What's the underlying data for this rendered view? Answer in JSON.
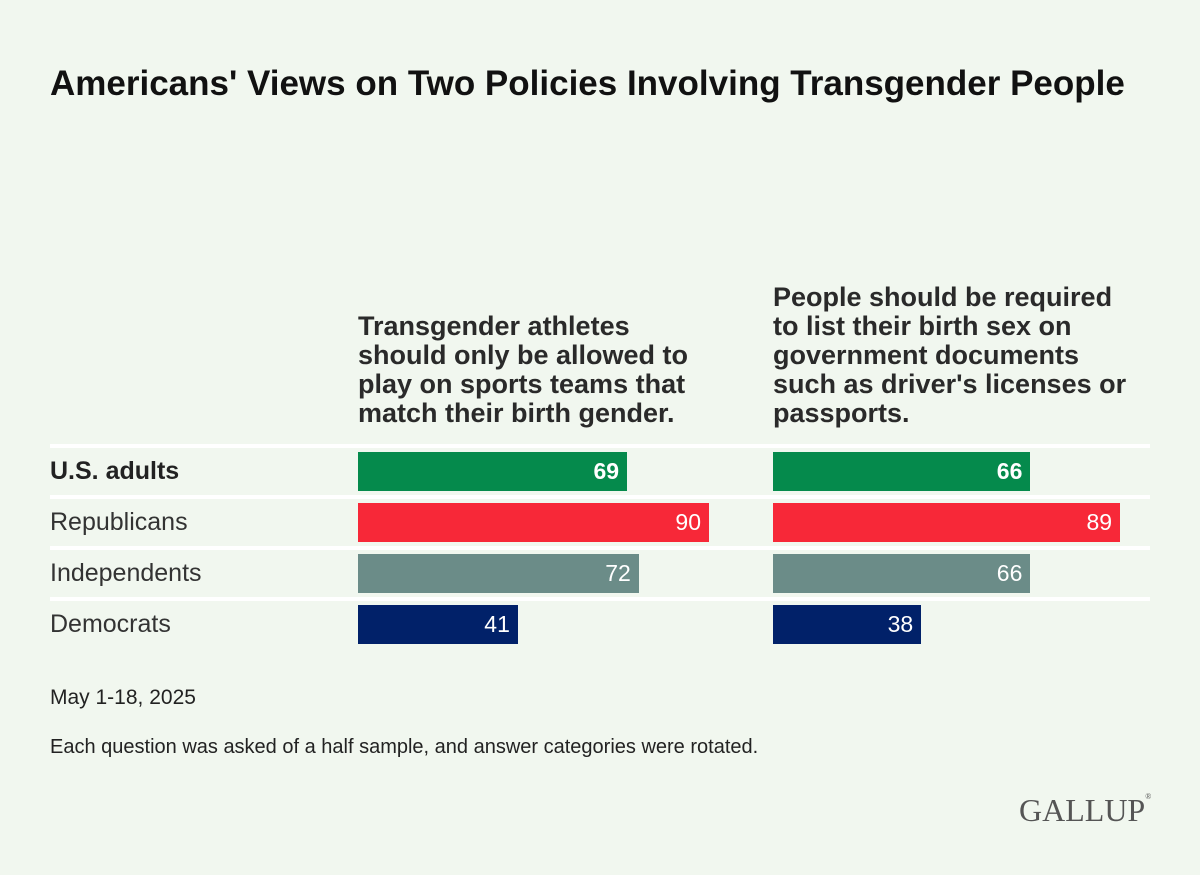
{
  "title": "Americans' Views on Two Policies Involving Transgender People",
  "chart_data": {
    "type": "bar",
    "title": "Americans' Views on Two Policies Involving Transgender People",
    "categories": [
      "U.S. adults",
      "Republicans",
      "Independents",
      "Democrats"
    ],
    "category_colors": [
      "#058a4c",
      "#f72838",
      "#6b8c88",
      "#012169"
    ],
    "series": [
      {
        "name": "Transgender athletes should only be allowed to play on sports teams that match their birth gender.",
        "values": [
          69,
          90,
          72,
          41
        ]
      },
      {
        "name": "People should be required to list their birth sex on government documents such as driver's licenses or passports.",
        "values": [
          66,
          89,
          66,
          38
        ]
      }
    ],
    "xlim": [
      0,
      100
    ],
    "grid": false
  },
  "footer": {
    "date": "May 1-18, 2025",
    "note": "Each question was asked of a half sample, and answer categories were rotated.",
    "logo": "GALLUP"
  }
}
